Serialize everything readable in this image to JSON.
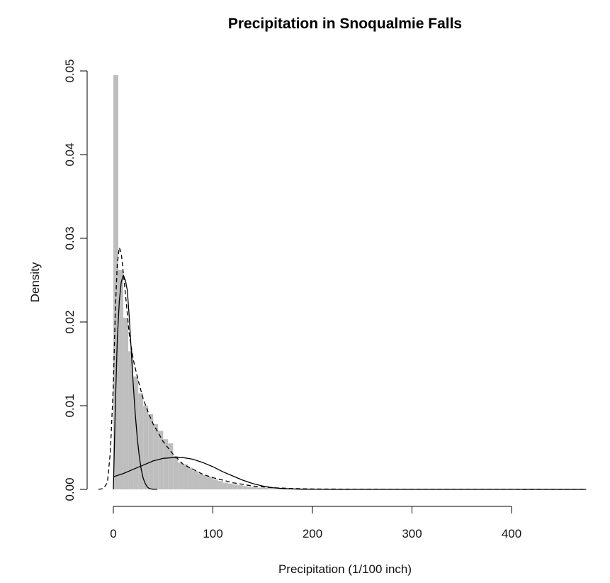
{
  "chart_data": {
    "type": "bar",
    "title": "Precipitation in Snoqualmie Falls",
    "xlabel": "Precipitation (1/100 inch)",
    "ylabel": "Density",
    "xlim": [
      -15,
      475
    ],
    "ylim": [
      0,
      0.05
    ],
    "x_ticks": [
      "0",
      "100",
      "200",
      "300",
      "400"
    ],
    "y_ticks": [
      "0.00",
      "0.01",
      "0.02",
      "0.03",
      "0.04",
      "0.05"
    ],
    "grid": false,
    "legend": "none",
    "colors": {
      "bars": "#bebebe",
      "lines": "#000000"
    },
    "histogram": {
      "bin_width": 5,
      "bin_starts": [
        0,
        5,
        10,
        15,
        20,
        25,
        30,
        35,
        40,
        45,
        50,
        55,
        60,
        65,
        70,
        75,
        80,
        85,
        90,
        95,
        100,
        105,
        110,
        115,
        120,
        125,
        130,
        135,
        140,
        145,
        150,
        155,
        160,
        165,
        170,
        175,
        180,
        185,
        190,
        195,
        200,
        210,
        220,
        230,
        240,
        250,
        260,
        280,
        300,
        350,
        400,
        450
      ],
      "density": [
        0.0495,
        0.0262,
        0.0205,
        0.0165,
        0.0135,
        0.0115,
        0.01,
        0.009,
        0.0078,
        0.007,
        0.006,
        0.0055,
        0.004,
        0.0032,
        0.003,
        0.0026,
        0.0022,
        0.0019,
        0.0017,
        0.0015,
        0.0012,
        0.001,
        0.0008,
        0.0007,
        0.0006,
        0.0005,
        0.0004,
        0.0003,
        0.0003,
        0.0002,
        0.0002,
        0.0002,
        0.0001,
        0.0001,
        0.0001,
        0.0001,
        0.0001,
        0.0001,
        5e-05,
        5e-05,
        4e-05,
        3e-05,
        3e-05,
        2e-05,
        2e-05,
        1e-05,
        1e-05,
        1e-05,
        1e-05,
        1e-05,
        1e-05,
        1e-05
      ]
    },
    "series": [
      {
        "style": "dashed",
        "x": [
          -15,
          -10,
          -6,
          -3,
          0,
          2,
          4,
          6,
          8,
          12,
          16,
          20,
          25,
          30,
          35,
          40,
          45,
          50,
          60,
          70,
          80,
          90,
          100,
          110,
          120,
          130,
          140,
          150,
          160,
          170,
          180,
          200,
          250,
          300,
          350,
          400,
          450,
          475
        ],
        "y": [
          0,
          0.0001,
          0.0008,
          0.0045,
          0.0125,
          0.0215,
          0.027,
          0.0289,
          0.0282,
          0.0235,
          0.0185,
          0.0155,
          0.013,
          0.0108,
          0.0092,
          0.0078,
          0.0068,
          0.0057,
          0.0042,
          0.003,
          0.0024,
          0.0018,
          0.0014,
          0.0011,
          0.0008,
          0.0006,
          0.0004,
          0.0003,
          0.0002,
          0.00015,
          0.0001,
          5e-05,
          2e-05,
          1e-05,
          1e-05,
          1e-05,
          0,
          0
        ]
      },
      {
        "style": "solid",
        "x": [
          0,
          2,
          4,
          6,
          8,
          10,
          12,
          14,
          16,
          18,
          20,
          22,
          24,
          26,
          28,
          30,
          32,
          34,
          36,
          38,
          40,
          42,
          44
        ],
        "y": [
          0,
          0.01,
          0.018,
          0.0225,
          0.0248,
          0.0256,
          0.025,
          0.0238,
          0.0205,
          0.0165,
          0.0125,
          0.009,
          0.0062,
          0.004,
          0.0024,
          0.0013,
          0.0007,
          0.0003,
          0.0001,
          5e-05,
          2e-05,
          1e-05,
          0
        ]
      },
      {
        "style": "solid",
        "x": [
          0,
          10,
          20,
          30,
          40,
          50,
          60,
          70,
          80,
          90,
          100,
          110,
          120,
          130,
          140,
          150,
          160,
          170,
          180,
          190,
          200,
          220,
          250,
          300,
          350,
          400,
          450,
          475
        ],
        "y": [
          0.0015,
          0.0019,
          0.0024,
          0.0029,
          0.0034,
          0.0037,
          0.0038,
          0.0038,
          0.0036,
          0.0032,
          0.0027,
          0.0021,
          0.0016,
          0.0011,
          0.0007,
          0.0004,
          0.0002,
          0.0001,
          5e-05,
          2e-05,
          1e-05,
          0,
          0,
          0,
          0,
          0,
          0,
          0
        ]
      }
    ]
  }
}
